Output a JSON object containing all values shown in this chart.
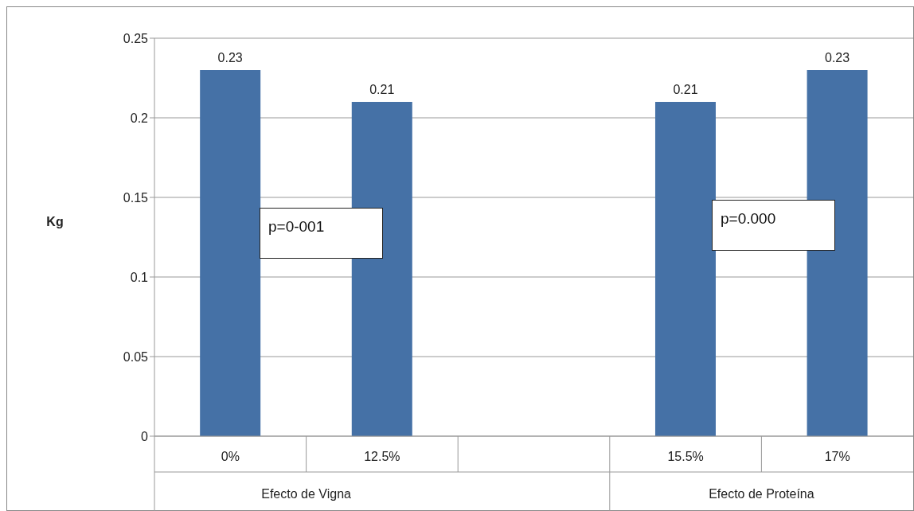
{
  "chart_data": {
    "type": "bar",
    "ylabel": "Kg",
    "categories": [
      "0%",
      "12.5%",
      null,
      "15.5%",
      "17%"
    ],
    "values": [
      0.23,
      0.21,
      null,
      0.21,
      0.23
    ],
    "color": "#4571a6",
    "ylim": [
      0,
      0.25
    ],
    "yticks": [
      0,
      0.05,
      0.1,
      0.15,
      0.2,
      0.25
    ],
    "grid": "y",
    "data_labels": true,
    "annotations": [
      "p=0-001",
      "p=0.000",
      "Efecto de Vigna",
      "Efecto de Proteína"
    ]
  }
}
